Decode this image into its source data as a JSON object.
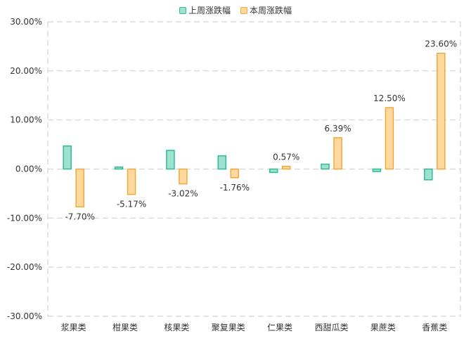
{
  "chart_data": {
    "type": "bar",
    "categories": [
      "浆果类",
      "柑果类",
      "核果类",
      "聚复果类",
      "仁果类",
      "西甜瓜类",
      "果蔗类",
      "香蕉类"
    ],
    "series": [
      {
        "name": "上周涨跌幅",
        "values": [
          4.7,
          0.4,
          3.8,
          2.7,
          -0.7,
          1.0,
          -0.5,
          -2.2
        ]
      },
      {
        "name": "本周涨跌幅",
        "values": [
          -7.7,
          -5.17,
          -3.02,
          -1.76,
          0.57,
          6.39,
          12.5,
          23.6
        ],
        "labels": [
          "-7.70%",
          "-5.17%",
          "-3.02%",
          "-1.76%",
          "0.57%",
          "6.39%",
          "12.50%",
          "23.60%"
        ]
      }
    ],
    "ylim": [
      -30,
      30
    ],
    "yticks": [
      30,
      20,
      10,
      0,
      -10,
      -20,
      -30
    ],
    "ytick_labels": [
      "30.00%",
      "20.00%",
      "10.00%",
      "0.00%",
      "-10.00%",
      "-20.00%",
      "-30.00%"
    ],
    "legend_position": "top-center",
    "grid": true,
    "colors": {
      "last_week_fill": "#9fe0cf",
      "last_week_stroke": "#2dbb98",
      "this_week_fill": "#fdd9a0",
      "this_week_stroke": "#f2a83c",
      "grid": "#d4d4d4",
      "text": "#333333"
    }
  }
}
